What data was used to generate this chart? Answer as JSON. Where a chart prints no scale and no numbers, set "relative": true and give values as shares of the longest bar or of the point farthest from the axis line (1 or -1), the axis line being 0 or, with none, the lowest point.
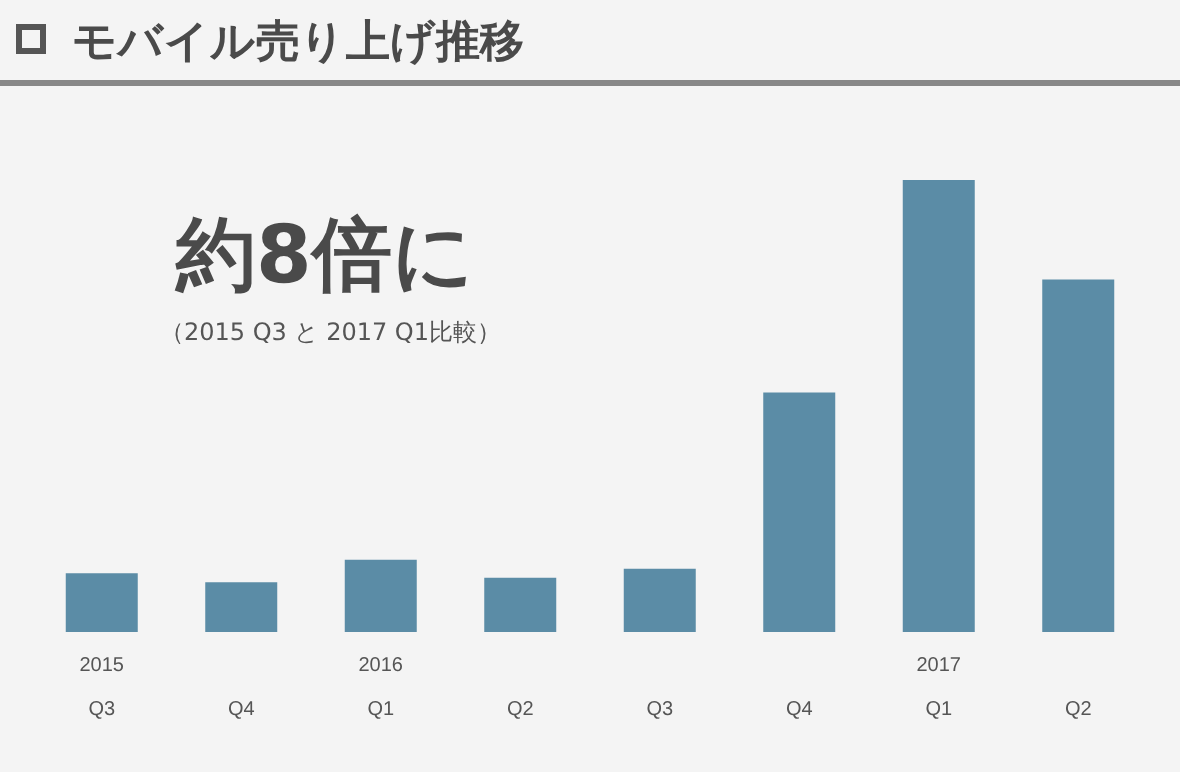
{
  "chart_data": {
    "type": "bar",
    "relative": true,
    "title": "モバイル売り上げ推移",
    "categories": [
      "2015\nQ3",
      "Q4",
      "2016\nQ1",
      "Q2",
      "Q3",
      "Q4",
      "2017\nQ1",
      "Q2"
    ],
    "values": [
      0.13,
      0.11,
      0.16,
      0.12,
      0.14,
      0.53,
      1,
      0.78
    ],
    "color": "#5b8ca6",
    "annotations": [
      "約8倍に",
      "（2015 Q3 と 2017 Q1比較）"
    ]
  }
}
